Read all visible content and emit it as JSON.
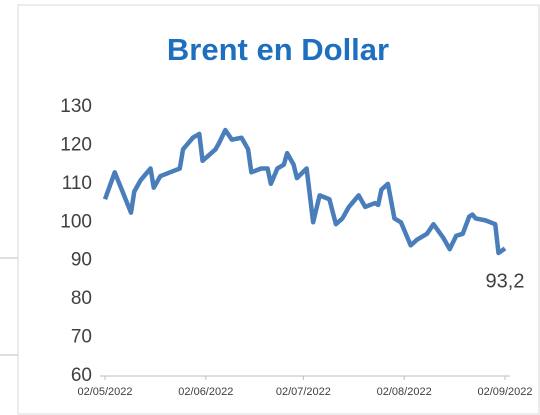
{
  "chart_data": {
    "type": "line",
    "title": "Brent en Dollar",
    "x": [
      "2022-05-02",
      "2022-05-05",
      "2022-05-10",
      "2022-05-11",
      "2022-05-13",
      "2022-05-16",
      "2022-05-17",
      "2022-05-19",
      "2022-05-22",
      "2022-05-25",
      "2022-05-26",
      "2022-05-29",
      "2022-05-31",
      "2022-06-01",
      "2022-06-05",
      "2022-06-06",
      "2022-06-08",
      "2022-06-10",
      "2022-06-13",
      "2022-06-15",
      "2022-06-16",
      "2022-06-19",
      "2022-06-21",
      "2022-06-22",
      "2022-06-24",
      "2022-06-26",
      "2022-06-27",
      "2022-06-29",
      "2022-06-30",
      "2022-07-03",
      "2022-07-05",
      "2022-07-07",
      "2022-07-10",
      "2022-07-12",
      "2022-07-14",
      "2022-07-16",
      "2022-07-19",
      "2022-07-21",
      "2022-07-24",
      "2022-07-25",
      "2022-07-26",
      "2022-07-28",
      "2022-07-30",
      "2022-08-01",
      "2022-08-04",
      "2022-08-06",
      "2022-08-09",
      "2022-08-11",
      "2022-08-14",
      "2022-08-16",
      "2022-08-18",
      "2022-08-20",
      "2022-08-22",
      "2022-08-23",
      "2022-08-24",
      "2022-08-27",
      "2022-08-30",
      "2022-08-31",
      "2022-09-02"
    ],
    "series": [
      {
        "name": "Brent",
        "color": "#4a7ebb",
        "values": [
          106,
          113,
          102.5,
          108,
          111,
          114,
          109,
          112,
          113,
          114,
          119,
          122,
          123,
          116,
          119,
          120.5,
          124,
          121.5,
          122,
          119,
          113,
          114,
          114,
          110,
          114,
          115,
          118,
          115,
          111.5,
          114,
          100,
          107,
          106,
          99.5,
          101,
          104,
          107,
          104,
          105,
          104.5,
          108.5,
          110,
          101,
          100,
          94,
          95.5,
          97,
          99.5,
          96,
          93,
          96.5,
          97,
          101.5,
          102,
          101,
          100.5,
          99.5,
          92,
          93.2
        ],
        "value_labels": [
          null,
          null,
          null,
          null,
          null,
          null,
          null,
          null,
          null,
          null,
          null,
          null,
          null,
          null,
          null,
          null,
          null,
          null,
          null,
          null,
          null,
          null,
          null,
          null,
          null,
          null,
          null,
          null,
          null,
          null,
          null,
          null,
          null,
          null,
          null,
          null,
          null,
          null,
          null,
          null,
          null,
          null,
          null,
          null,
          null,
          null,
          null,
          null,
          null,
          null,
          null,
          null,
          null,
          null,
          null,
          null,
          null,
          null,
          "93,2"
        ]
      }
    ],
    "xlim": [
      "2022-05-02",
      "2022-09-02"
    ],
    "xticks": [
      {
        "value": "2022-05-02",
        "label": "02/05/2022"
      },
      {
        "value": "2022-06-02",
        "label": "02/06/2022"
      },
      {
        "value": "2022-07-02",
        "label": "02/07/2022"
      },
      {
        "value": "2022-08-02",
        "label": "02/08/2022"
      },
      {
        "value": "2022-09-02",
        "label": "02/09/2022"
      }
    ],
    "ylim": [
      60,
      130
    ],
    "yticks": [
      60,
      70,
      80,
      90,
      100,
      110,
      120,
      130
    ],
    "grid": false
  }
}
